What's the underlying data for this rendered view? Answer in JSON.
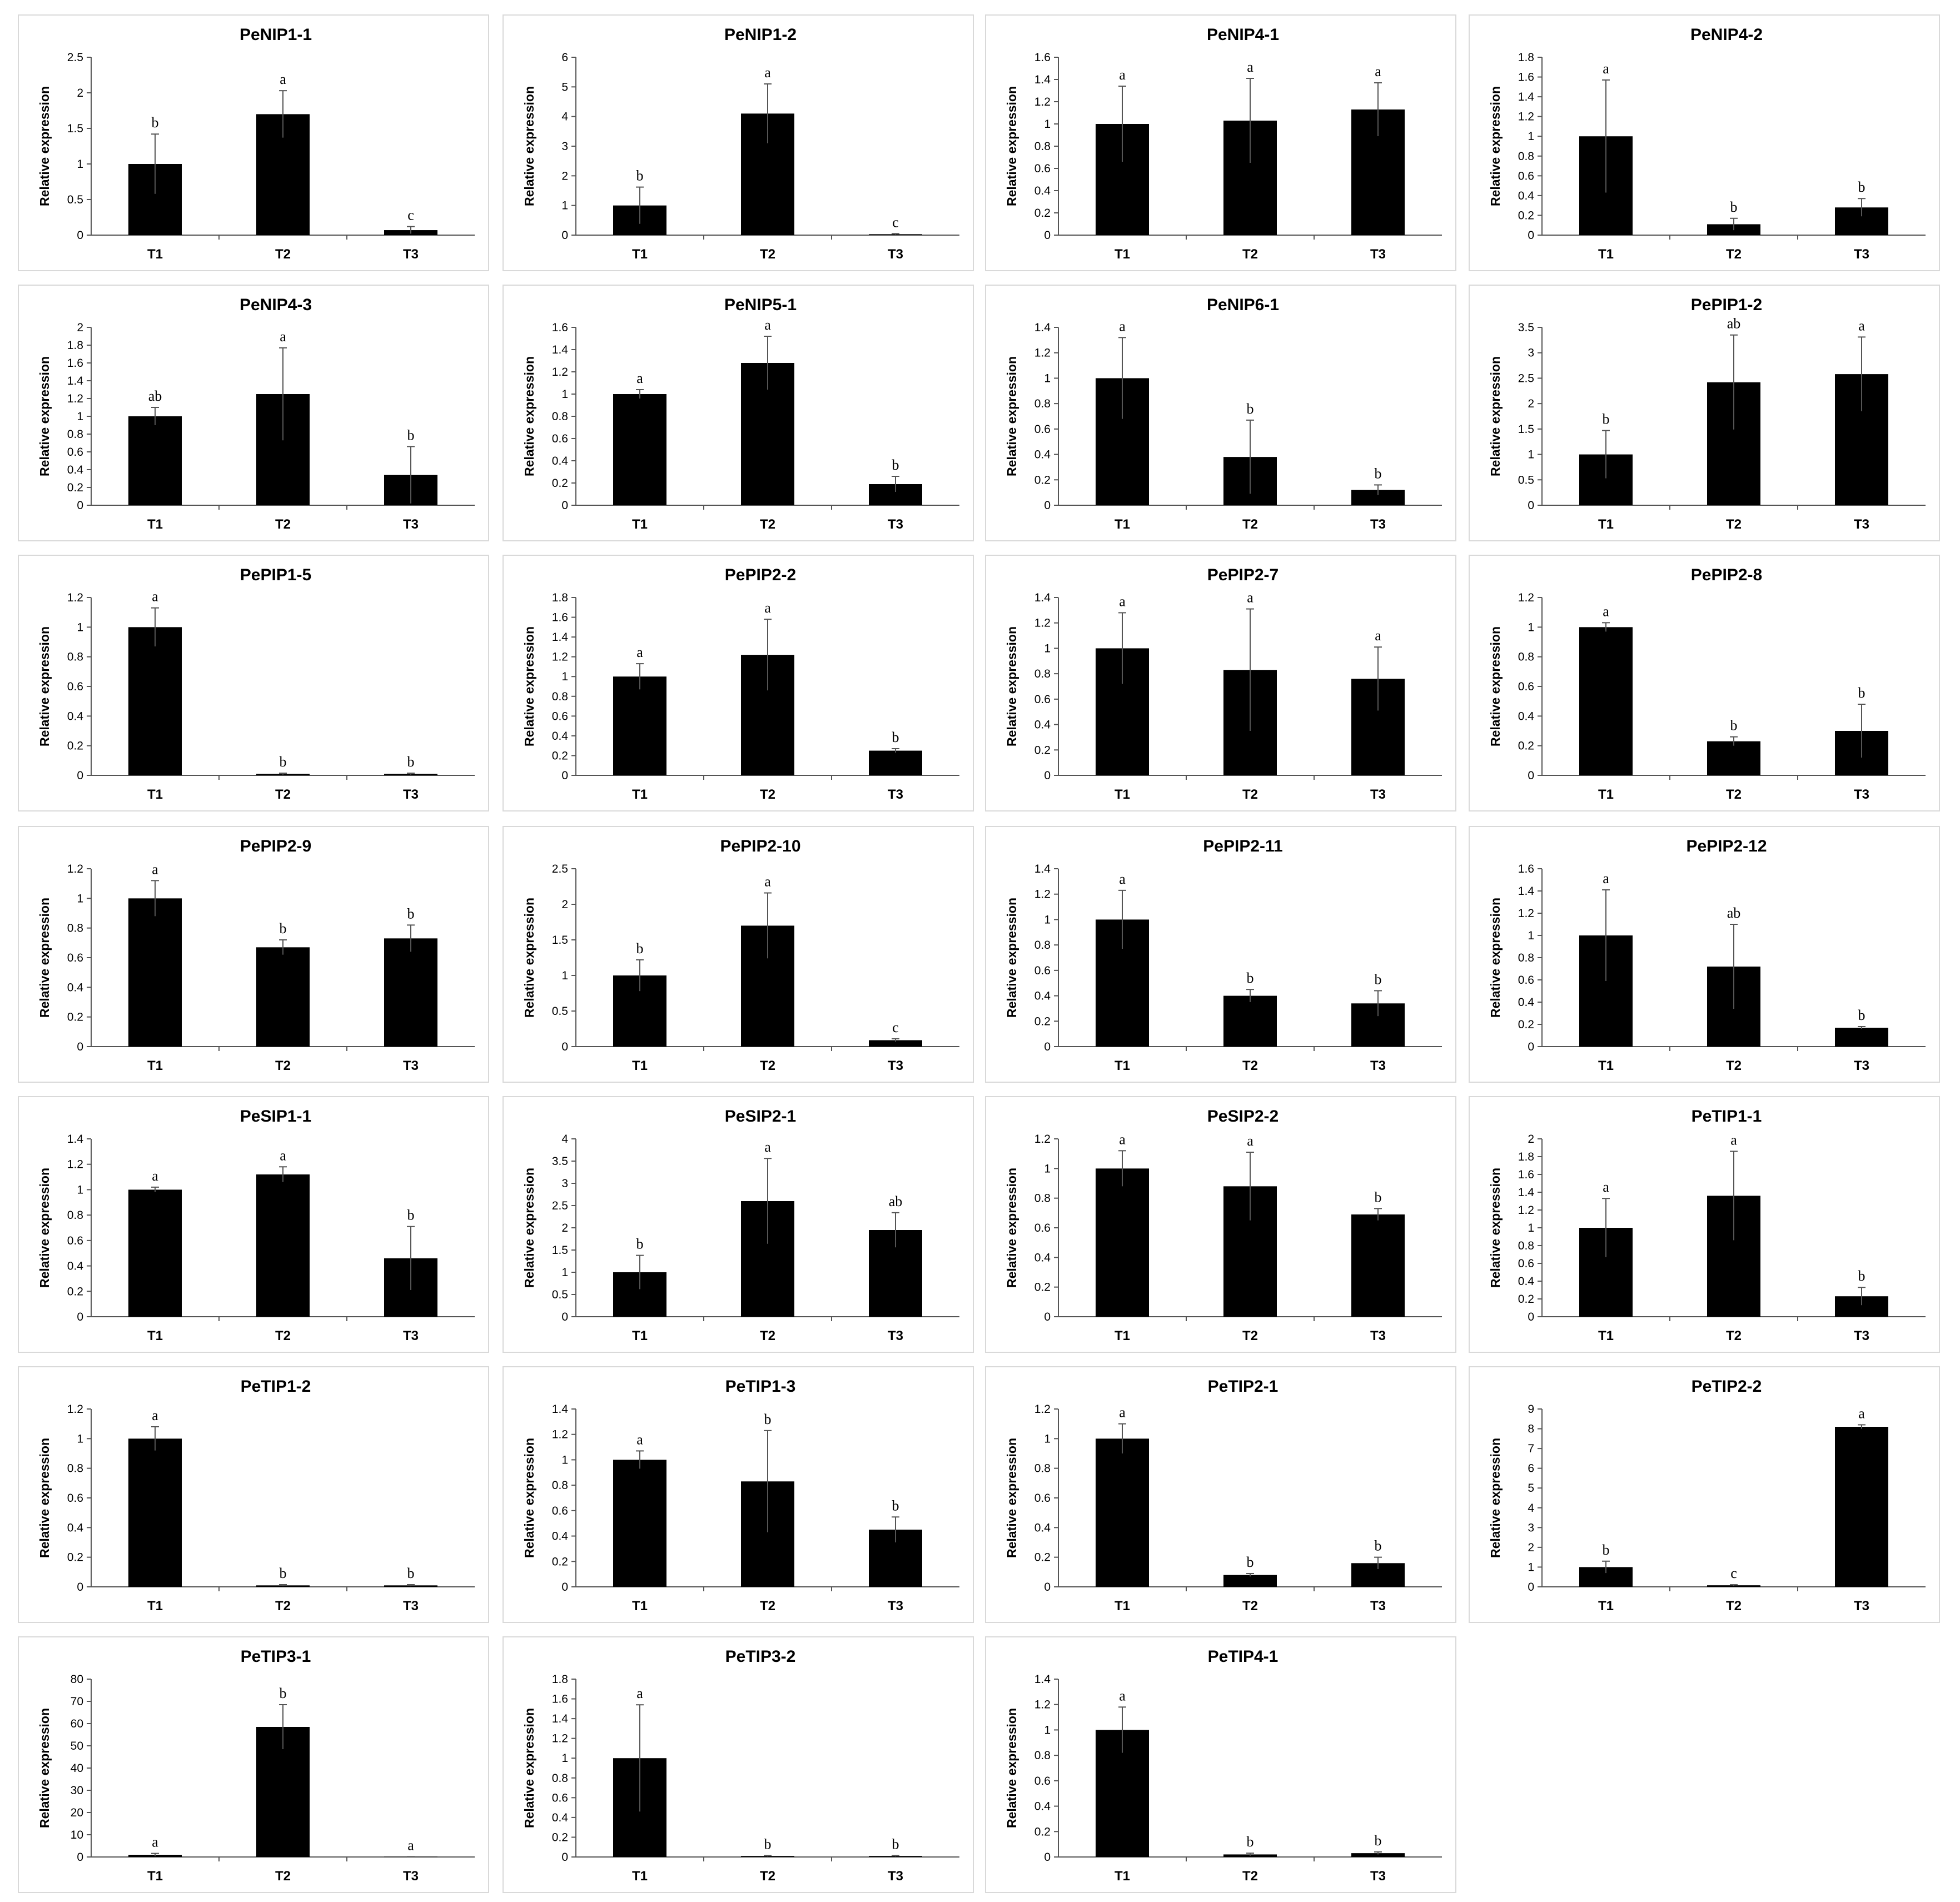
{
  "chart_data": [
    {
      "type": "bar",
      "title": "PeNIP1-1",
      "ylabel": "Relative expression",
      "categories": [
        "T1",
        "T2",
        "T3"
      ],
      "values": [
        1.0,
        1.7,
        0.07
      ],
      "errors": [
        0.42,
        0.33,
        0.05
      ],
      "significance": [
        "b",
        "a",
        "c"
      ],
      "ylim": [
        0,
        2.5
      ],
      "yticks": [
        "0",
        "0.5",
        "1",
        "1.5",
        "2",
        "2.5"
      ]
    },
    {
      "type": "bar",
      "title": "PeNIP1-2",
      "ylabel": "Relative expression",
      "categories": [
        "T1",
        "T2",
        "T3"
      ],
      "values": [
        1.0,
        4.1,
        0.03
      ],
      "errors": [
        0.62,
        1.0,
        0.02
      ],
      "significance": [
        "b",
        "a",
        "c"
      ],
      "ylim": [
        0,
        6
      ],
      "yticks": [
        "0",
        "1",
        "2",
        "3",
        "4",
        "5",
        "6"
      ]
    },
    {
      "type": "bar",
      "title": "PeNIP4-1",
      "ylabel": "Relative expression",
      "categories": [
        "T1",
        "T2",
        "T3"
      ],
      "values": [
        1.0,
        1.03,
        1.13
      ],
      "errors": [
        0.34,
        0.38,
        0.24
      ],
      "significance": [
        "a",
        "a",
        "a"
      ],
      "ylim": [
        0,
        1.6
      ],
      "yticks": [
        "0",
        "0.2",
        "0.4",
        "0.6",
        "0.8",
        "1",
        "1.2",
        "1.4",
        "1.6"
      ]
    },
    {
      "type": "bar",
      "title": "PeNIP4-2",
      "ylabel": "Relative expression",
      "categories": [
        "T1",
        "T2",
        "T3"
      ],
      "values": [
        1.0,
        0.11,
        0.28
      ],
      "errors": [
        0.57,
        0.06,
        0.09
      ],
      "significance": [
        "a",
        "b",
        "b"
      ],
      "ylim": [
        0,
        1.8
      ],
      "yticks": [
        "0",
        "0.2",
        "0.4",
        "0.6",
        "0.8",
        "1",
        "1.2",
        "1.4",
        "1.6",
        "1.8"
      ]
    },
    {
      "type": "bar",
      "title": "PeNIP4-3",
      "ylabel": "Relative expression",
      "categories": [
        "T1",
        "T2",
        "T3"
      ],
      "values": [
        1.0,
        1.25,
        0.34
      ],
      "errors": [
        0.1,
        0.52,
        0.32
      ],
      "significance": [
        "ab",
        "a",
        "b"
      ],
      "ylim": [
        0,
        2
      ],
      "yticks": [
        "0",
        "0.2",
        "0.4",
        "0.6",
        "0.8",
        "1",
        "1.2",
        "1.4",
        "1.6",
        "1.8",
        "2"
      ]
    },
    {
      "type": "bar",
      "title": "PeNIP5-1",
      "ylabel": "Relative expression",
      "categories": [
        "T1",
        "T2",
        "T3"
      ],
      "values": [
        1.0,
        1.28,
        0.19
      ],
      "errors": [
        0.04,
        0.24,
        0.07
      ],
      "significance": [
        "a",
        "a",
        "b"
      ],
      "ylim": [
        0,
        1.6
      ],
      "yticks": [
        "0",
        "0.2",
        "0.4",
        "0.6",
        "0.8",
        "1",
        "1.2",
        "1.4",
        "1.6"
      ]
    },
    {
      "type": "bar",
      "title": "PeNIP6-1",
      "ylabel": "Relative expression",
      "categories": [
        "T1",
        "T2",
        "T3"
      ],
      "values": [
        1.0,
        0.38,
        0.12
      ],
      "errors": [
        0.32,
        0.29,
        0.04
      ],
      "significance": [
        "a",
        "b",
        "b"
      ],
      "ylim": [
        0,
        1.4
      ],
      "yticks": [
        "0",
        "0.2",
        "0.4",
        "0.6",
        "0.8",
        "1",
        "1.2",
        "1.4"
      ]
    },
    {
      "type": "bar",
      "title": "PePIP1-2",
      "ylabel": "Relative expression",
      "categories": [
        "T1",
        "T2",
        "T3"
      ],
      "values": [
        1.0,
        2.42,
        2.58
      ],
      "errors": [
        0.47,
        0.93,
        0.73
      ],
      "significance": [
        "b",
        "ab",
        "a"
      ],
      "ylim": [
        0,
        3.5
      ],
      "yticks": [
        "0",
        "0.5",
        "1",
        "1.5",
        "2",
        "2.5",
        "3",
        "3.5"
      ]
    },
    {
      "type": "bar",
      "title": "PePIP1-5",
      "ylabel": "Relative expression",
      "categories": [
        "T1",
        "T2",
        "T3"
      ],
      "values": [
        1.0,
        0.01,
        0.01
      ],
      "errors": [
        0.13,
        0.005,
        0.005
      ],
      "significance": [
        "a",
        "b",
        "b"
      ],
      "ylim": [
        0,
        1.2
      ],
      "yticks": [
        "0",
        "0.2",
        "0.4",
        "0.6",
        "0.8",
        "1",
        "1.2"
      ]
    },
    {
      "type": "bar",
      "title": "PePIP2-2",
      "ylabel": "Relative expression",
      "categories": [
        "T1",
        "T2",
        "T3"
      ],
      "values": [
        1.0,
        1.22,
        0.25
      ],
      "errors": [
        0.13,
        0.36,
        0.02
      ],
      "significance": [
        "a",
        "a",
        "b"
      ],
      "ylim": [
        0,
        1.8
      ],
      "yticks": [
        "0",
        "0.2",
        "0.4",
        "0.6",
        "0.8",
        "1",
        "1.2",
        "1.4",
        "1.6",
        "1.8"
      ]
    },
    {
      "type": "bar",
      "title": "PePIP2-7",
      "ylabel": "Relative expression",
      "categories": [
        "T1",
        "T2",
        "T3"
      ],
      "values": [
        1.0,
        0.83,
        0.76
      ],
      "errors": [
        0.28,
        0.48,
        0.25
      ],
      "significance": [
        "a",
        "a",
        "a"
      ],
      "ylim": [
        0,
        1.4
      ],
      "yticks": [
        "0",
        "0.2",
        "0.4",
        "0.6",
        "0.8",
        "1",
        "1.2",
        "1.4"
      ]
    },
    {
      "type": "bar",
      "title": "PePIP2-8",
      "ylabel": "Relative expression",
      "categories": [
        "T1",
        "T2",
        "T3"
      ],
      "values": [
        1.0,
        0.23,
        0.3
      ],
      "errors": [
        0.03,
        0.03,
        0.18
      ],
      "significance": [
        "a",
        "b",
        "b"
      ],
      "ylim": [
        0,
        1.2
      ],
      "yticks": [
        "0",
        "0.2",
        "0.4",
        "0.6",
        "0.8",
        "1",
        "1.2"
      ]
    },
    {
      "type": "bar",
      "title": "PePIP2-9",
      "ylabel": "Relative expression",
      "categories": [
        "T1",
        "T2",
        "T3"
      ],
      "values": [
        1.0,
        0.67,
        0.73
      ],
      "errors": [
        0.12,
        0.05,
        0.09
      ],
      "significance": [
        "a",
        "b",
        "b"
      ],
      "ylim": [
        0,
        1.2
      ],
      "yticks": [
        "0",
        "0.2",
        "0.4",
        "0.6",
        "0.8",
        "1",
        "1.2"
      ]
    },
    {
      "type": "bar",
      "title": "PePIP2-10",
      "ylabel": "Relative expression",
      "categories": [
        "T1",
        "T2",
        "T3"
      ],
      "values": [
        1.0,
        1.7,
        0.09
      ],
      "errors": [
        0.22,
        0.46,
        0.02
      ],
      "significance": [
        "b",
        "a",
        "c"
      ],
      "ylim": [
        0,
        2.5
      ],
      "yticks": [
        "0",
        "0.5",
        "1",
        "1.5",
        "2",
        "2.5"
      ]
    },
    {
      "type": "bar",
      "title": "PePIP2-11",
      "ylabel": "Relative expression",
      "categories": [
        "T1",
        "T2",
        "T3"
      ],
      "values": [
        1.0,
        0.4,
        0.34
      ],
      "errors": [
        0.23,
        0.05,
        0.1
      ],
      "significance": [
        "a",
        "b",
        "b"
      ],
      "ylim": [
        0,
        1.4
      ],
      "yticks": [
        "0",
        "0.2",
        "0.4",
        "0.6",
        "0.8",
        "1",
        "1.2",
        "1.4"
      ]
    },
    {
      "type": "bar",
      "title": "PePIP2-12",
      "ylabel": "Relative expression",
      "categories": [
        "T1",
        "T2",
        "T3"
      ],
      "values": [
        1.0,
        0.72,
        0.17
      ],
      "errors": [
        0.41,
        0.38,
        0.01
      ],
      "significance": [
        "a",
        "ab",
        "b"
      ],
      "ylim": [
        0,
        1.6
      ],
      "yticks": [
        "0",
        "0.2",
        "0.4",
        "0.6",
        "0.8",
        "1",
        "1.2",
        "1.4",
        "1.6"
      ]
    },
    {
      "type": "bar",
      "title": "PeSIP1-1",
      "ylabel": "Relative expression",
      "categories": [
        "T1",
        "T2",
        "T3"
      ],
      "values": [
        1.0,
        1.12,
        0.46
      ],
      "errors": [
        0.02,
        0.06,
        0.25
      ],
      "significance": [
        "a",
        "a",
        "b"
      ],
      "ylim": [
        0,
        1.4
      ],
      "yticks": [
        "0",
        "0.2",
        "0.4",
        "0.6",
        "0.8",
        "1",
        "1.2",
        "1.4"
      ]
    },
    {
      "type": "bar",
      "title": "PeSIP2-1",
      "ylabel": "Relative expression",
      "categories": [
        "T1",
        "T2",
        "T3"
      ],
      "values": [
        1.0,
        2.6,
        1.95
      ],
      "errors": [
        0.38,
        0.96,
        0.39
      ],
      "significance": [
        "b",
        "a",
        "ab"
      ],
      "ylim": [
        0,
        4
      ],
      "yticks": [
        "0",
        "0.5",
        "1",
        "1.5",
        "2",
        "2.5",
        "3",
        "3.5",
        "4"
      ]
    },
    {
      "type": "bar",
      "title": "PeSIP2-2",
      "ylabel": "Relative expression",
      "categories": [
        "T1",
        "T2",
        "T3"
      ],
      "values": [
        1.0,
        0.88,
        0.69
      ],
      "errors": [
        0.12,
        0.23,
        0.04
      ],
      "significance": [
        "a",
        "a",
        "b"
      ],
      "ylim": [
        0,
        1.2
      ],
      "yticks": [
        "0",
        "0.2",
        "0.4",
        "0.6",
        "0.8",
        "1",
        "1.2"
      ]
    },
    {
      "type": "bar",
      "title": "PeTIP1-1",
      "ylabel": "Relative expression",
      "categories": [
        "T1",
        "T2",
        "T3"
      ],
      "values": [
        1.0,
        1.36,
        0.23
      ],
      "errors": [
        0.33,
        0.5,
        0.1
      ],
      "significance": [
        "a",
        "a",
        "b"
      ],
      "ylim": [
        0,
        2
      ],
      "yticks": [
        "0",
        "0.2",
        "0.4",
        "0.6",
        "0.8",
        "1",
        "1.2",
        "1.4",
        "1.6",
        "1.8",
        "2"
      ]
    },
    {
      "type": "bar",
      "title": "PeTIP1-2",
      "ylabel": "Relative expression",
      "categories": [
        "T1",
        "T2",
        "T3"
      ],
      "values": [
        1.0,
        0.01,
        0.01
      ],
      "errors": [
        0.08,
        0.005,
        0.005
      ],
      "significance": [
        "a",
        "b",
        "b"
      ],
      "ylim": [
        0,
        1.2
      ],
      "yticks": [
        "0",
        "0.2",
        "0.4",
        "0.6",
        "0.8",
        "1",
        "1.2"
      ]
    },
    {
      "type": "bar",
      "title": "PeTIP1-3",
      "ylabel": "Relative expression",
      "categories": [
        "T1",
        "T2",
        "T3"
      ],
      "values": [
        1.0,
        0.83,
        0.45
      ],
      "errors": [
        0.07,
        0.4,
        0.1
      ],
      "significance": [
        "a",
        "b",
        "b"
      ],
      "ylim": [
        0,
        1.4
      ],
      "yticks": [
        "0",
        "0.2",
        "0.4",
        "0.6",
        "0.8",
        "1",
        "1.2",
        "1.4"
      ]
    },
    {
      "type": "bar",
      "title": "PeTIP2-1",
      "ylabel": "Relative expression",
      "categories": [
        "T1",
        "T2",
        "T3"
      ],
      "values": [
        1.0,
        0.08,
        0.16
      ],
      "errors": [
        0.1,
        0.01,
        0.04
      ],
      "significance": [
        "a",
        "b",
        "b"
      ],
      "ylim": [
        0,
        1.2
      ],
      "yticks": [
        "0",
        "0.2",
        "0.4",
        "0.6",
        "0.8",
        "1",
        "1.2"
      ]
    },
    {
      "type": "bar",
      "title": "PeTIP2-2",
      "ylabel": "Relative expression",
      "categories": [
        "T1",
        "T2",
        "T3"
      ],
      "values": [
        1.0,
        0.08,
        8.1
      ],
      "errors": [
        0.3,
        0.03,
        0.1
      ],
      "significance": [
        "b",
        "c",
        "a"
      ],
      "ylim": [
        0,
        9
      ],
      "yticks": [
        "0",
        "1",
        "2",
        "3",
        "4",
        "5",
        "6",
        "7",
        "8",
        "9"
      ]
    },
    {
      "type": "bar",
      "title": "PeTIP3-1",
      "ylabel": "Relative expression",
      "categories": [
        "T1",
        "T2",
        "T3"
      ],
      "values": [
        1.0,
        58.5,
        0.1
      ],
      "errors": [
        0.6,
        10,
        0.05
      ],
      "significance": [
        "a",
        "b",
        "a"
      ],
      "ylim": [
        0,
        80
      ],
      "yticks": [
        "0",
        "10",
        "20",
        "30",
        "40",
        "50",
        "60",
        "70",
        "80"
      ]
    },
    {
      "type": "bar",
      "title": "PeTIP3-2",
      "ylabel": "Relative expression",
      "categories": [
        "T1",
        "T2",
        "T3"
      ],
      "values": [
        1.0,
        0.01,
        0.01
      ],
      "errors": [
        0.54,
        0.005,
        0.005
      ],
      "significance": [
        "a",
        "b",
        "b"
      ],
      "ylim": [
        0,
        1.8
      ],
      "yticks": [
        "0",
        "0.2",
        "0.4",
        "0.6",
        "0.8",
        "1",
        "1.2",
        "1.4",
        "1.6",
        "1.8"
      ]
    },
    {
      "type": "bar",
      "title": "PeTIP4-1",
      "ylabel": "Relative expression",
      "categories": [
        "T1",
        "T2",
        "T3"
      ],
      "values": [
        1.0,
        0.02,
        0.03
      ],
      "errors": [
        0.18,
        0.01,
        0.01
      ],
      "significance": [
        "a",
        "b",
        "b"
      ],
      "ylim": [
        0,
        1.4
      ],
      "yticks": [
        "0",
        "0.2",
        "0.4",
        "0.6",
        "0.8",
        "1",
        "1.2",
        "1.4"
      ]
    }
  ]
}
